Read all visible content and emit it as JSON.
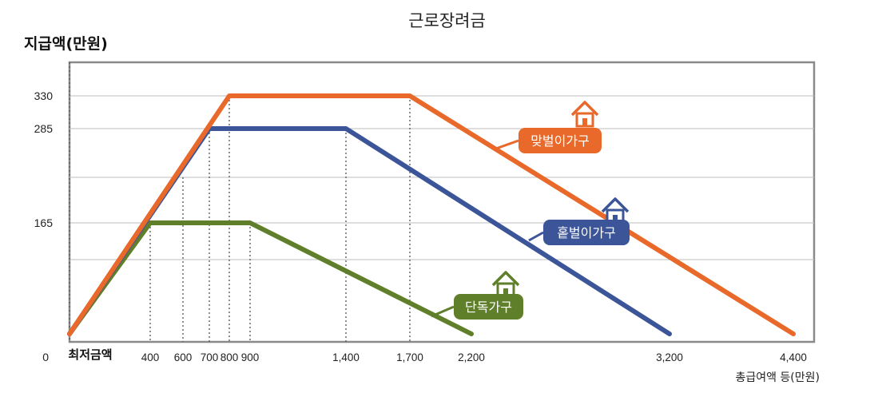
{
  "chart_data": {
    "type": "line",
    "title": "근로장려금",
    "ylabel": "지급액(만원)",
    "xlabel": "총급여액 등(만원)",
    "x_start_label": "최저금액",
    "x_ticks": [
      {
        "v": 400,
        "label": "400"
      },
      {
        "v": 600,
        "label": "600"
      },
      {
        "v": 700,
        "label": "700"
      },
      {
        "v": 800,
        "label": "800"
      },
      {
        "v": 900,
        "label": "900"
      },
      {
        "v": 1400,
        "label": "1,400"
      },
      {
        "v": 1700,
        "label": "1,700"
      },
      {
        "v": 2200,
        "label": "2,200"
      },
      {
        "v": 3200,
        "label": "3,200"
      },
      {
        "v": 4400,
        "label": "4,400"
      }
    ],
    "y_ticks": [
      {
        "v": 0,
        "label": "0"
      },
      {
        "v": 165,
        "label": "165"
      },
      {
        "v": 285,
        "label": "285"
      },
      {
        "v": 330,
        "label": "330"
      }
    ],
    "grid": true,
    "series": [
      {
        "name": "맞벌이가구",
        "color": "#e8692a",
        "points": [
          [
            0,
            0
          ],
          [
            800,
            330
          ],
          [
            1700,
            330
          ],
          [
            4400,
            0
          ]
        ]
      },
      {
        "name": "홑벌이가구",
        "color": "#3b5598",
        "points": [
          [
            0,
            0
          ],
          [
            700,
            285
          ],
          [
            1400,
            285
          ],
          [
            3200,
            0
          ]
        ]
      },
      {
        "name": "단독가구",
        "color": "#5f7f2b",
        "points": [
          [
            0,
            0
          ],
          [
            400,
            165
          ],
          [
            900,
            165
          ],
          [
            2200,
            0
          ]
        ]
      }
    ]
  }
}
